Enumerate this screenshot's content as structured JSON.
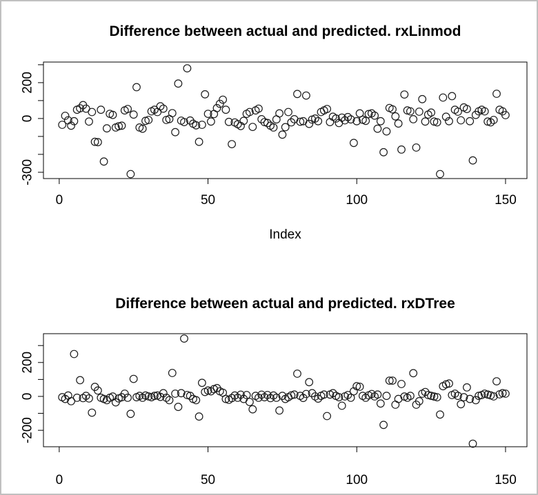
{
  "window": {
    "background": "#ffffff",
    "border_color": "#c0c0c0",
    "foreground": "#000000"
  },
  "chart_data": [
    {
      "type": "scatter",
      "title": "Difference between actual and predicted. rxLinmod",
      "xlabel": "Index",
      "ylabel": "",
      "marker": "open-circle",
      "grid": false,
      "x_type": "index_1_to_n",
      "n_points": 150,
      "xlim": [
        -5.3,
        157.2
      ],
      "ylim": [
        -335,
        315
      ],
      "xticks": [
        0,
        50,
        100,
        150
      ],
      "xtick_labels": [
        "0",
        "50",
        "100",
        "150"
      ],
      "yticks": [
        300,
        200,
        100,
        0,
        -100,
        -200,
        -300
      ],
      "ytick_labels": [
        "",
        "200",
        "",
        "0",
        "",
        "",
        "-300"
      ],
      "y": [
        -35,
        15,
        -10,
        -40,
        -15,
        49,
        57,
        75,
        55,
        -17,
        36,
        -130,
        -132,
        49,
        -240,
        -55,
        26,
        20,
        -50,
        -43,
        -40,
        45,
        53,
        -310,
        22,
        175,
        -50,
        -57,
        -13,
        -8,
        40,
        49,
        36,
        68,
        55,
        -8,
        -3,
        30,
        -76,
        195,
        -12,
        -20,
        280,
        -11,
        -29,
        -38,
        -130,
        -35,
        135,
        26,
        -17,
        25,
        58,
        82,
        105,
        49,
        -19,
        -143,
        -22,
        -32,
        -42,
        -13,
        26,
        36,
        -47,
        45,
        55,
        -4,
        -20,
        -25,
        -40,
        -50,
        -5,
        29,
        -90,
        -48,
        36,
        -21,
        -4,
        137,
        -18,
        -15,
        128,
        -30,
        -6,
        0,
        -15,
        36,
        45,
        53,
        -20,
        10,
        0,
        -25,
        5,
        -10,
        8,
        -5,
        -136,
        -15,
        29,
        -7,
        -13,
        25,
        29,
        16,
        -57,
        -15,
        -188,
        -72,
        59,
        51,
        12,
        -28,
        -173,
        134,
        45,
        40,
        -4,
        -162,
        38,
        108,
        -17,
        22,
        33,
        -17,
        -21,
        -310,
        117,
        10,
        -15,
        125,
        49,
        38,
        -10,
        62,
        53,
        -15,
        -234,
        20,
        40,
        49,
        40,
        -17,
        -21,
        -8,
        138,
        49,
        40,
        19
      ]
    },
    {
      "type": "scatter",
      "title": "Difference between actual and predicted. rxDTree",
      "xlabel": "",
      "ylabel": "",
      "marker": "open-circle",
      "grid": false,
      "x_type": "index_1_to_n",
      "n_points": 150,
      "xlim": [
        -5.3,
        157.2
      ],
      "ylim": [
        -297,
        370
      ],
      "xticks": [
        0,
        50,
        100,
        150
      ],
      "xtick_labels": [
        "0",
        "50",
        "100",
        "150"
      ],
      "yticks": [
        300,
        200,
        100,
        0,
        -100,
        -200
      ],
      "ytick_labels": [
        "",
        "200",
        "",
        "0",
        "",
        "-200"
      ],
      "y": [
        -5,
        -15,
        5,
        -28,
        250,
        -8,
        96,
        -10,
        3,
        -12,
        -96,
        56,
        35,
        -8,
        -15,
        -22,
        -8,
        -1,
        -35,
        -12,
        -5,
        16,
        -8,
        -103,
        103,
        -5,
        3,
        -8,
        5,
        0,
        -5,
        3,
        5,
        -3,
        19,
        -8,
        -22,
        138,
        16,
        -62,
        19,
        341,
        8,
        3,
        -15,
        -22,
        -119,
        80,
        26,
        35,
        30,
        43,
        49,
        30,
        22,
        -15,
        -20,
        -10,
        5,
        -8,
        10,
        -15,
        8,
        -33,
        -76,
        3,
        -8,
        10,
        -5,
        8,
        -10,
        5,
        -8,
        -83,
        3,
        -15,
        -5,
        6,
        11,
        134,
        3,
        -9,
        14,
        84,
        19,
        0,
        -13,
        3,
        11,
        -116,
        11,
        19,
        3,
        -5,
        -55,
        0,
        8,
        -8,
        30,
        60,
        57,
        3,
        -8,
        6,
        14,
        0,
        11,
        -42,
        -168,
        3,
        93,
        93,
        -49,
        -15,
        73,
        -1,
        -8,
        3,
        137,
        -49,
        -28,
        16,
        26,
        8,
        3,
        -1,
        -5,
        -107,
        60,
        71,
        76,
        8,
        16,
        3,
        -46,
        -5,
        53,
        -15,
        -279,
        -22,
        3,
        8,
        16,
        11,
        6,
        0,
        89,
        12,
        19,
        16
      ]
    }
  ]
}
